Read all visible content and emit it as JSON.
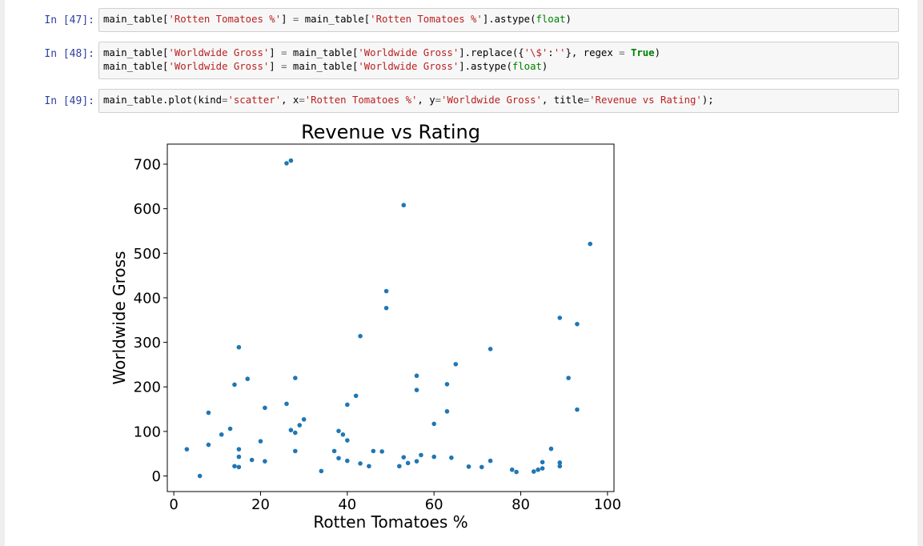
{
  "cells": [
    {
      "prompt": "In [47]:",
      "lines": [
        [
          [
            "t",
            "main_table["
          ],
          [
            "s",
            "'Rotten Tomatoes %'"
          ],
          [
            "t",
            "] "
          ],
          [
            "o",
            "="
          ],
          [
            "t",
            " main_table["
          ],
          [
            "s",
            "'Rotten Tomatoes %'"
          ],
          [
            "t",
            "].astype("
          ],
          [
            "b",
            "float"
          ],
          [
            "t",
            ")"
          ]
        ]
      ]
    },
    {
      "prompt": "In [48]:",
      "lines": [
        [
          [
            "t",
            "main_table["
          ],
          [
            "s",
            "'Worldwide Gross'"
          ],
          [
            "t",
            "] "
          ],
          [
            "o",
            "="
          ],
          [
            "t",
            " main_table["
          ],
          [
            "s",
            "'Worldwide Gross'"
          ],
          [
            "t",
            "].replace({"
          ],
          [
            "s",
            "'\\$'"
          ],
          [
            "t",
            ":"
          ],
          [
            "s",
            "''"
          ],
          [
            "t",
            "}, regex "
          ],
          [
            "o",
            "="
          ],
          [
            "t",
            " "
          ],
          [
            "k",
            "True"
          ],
          [
            "t",
            ")"
          ]
        ],
        [
          [
            "t",
            "main_table["
          ],
          [
            "s",
            "'Worldwide Gross'"
          ],
          [
            "t",
            "] "
          ],
          [
            "o",
            "="
          ],
          [
            "t",
            " main_table["
          ],
          [
            "s",
            "'Worldwide Gross'"
          ],
          [
            "t",
            "].astype("
          ],
          [
            "b",
            "float"
          ],
          [
            "t",
            ")"
          ]
        ]
      ]
    },
    {
      "prompt": "In [49]:",
      "lines": [
        [
          [
            "t",
            "main_table.plot(kind"
          ],
          [
            "o",
            "="
          ],
          [
            "s",
            "'scatter'"
          ],
          [
            "t",
            ", x"
          ],
          [
            "o",
            "="
          ],
          [
            "s",
            "'Rotten Tomatoes %'"
          ],
          [
            "t",
            ", y"
          ],
          [
            "o",
            "="
          ],
          [
            "s",
            "'Worldwide Gross'"
          ],
          [
            "t",
            ", title"
          ],
          [
            "o",
            "="
          ],
          [
            "s",
            "'Revenue vs Rating'"
          ],
          [
            "t",
            ");"
          ]
        ]
      ]
    }
  ],
  "chart_data": {
    "type": "scatter",
    "title": "Revenue vs Rating",
    "xlabel": "Rotten Tomatoes %",
    "ylabel": "Worldwide Gross",
    "xlim": [
      -1.5,
      101.5
    ],
    "ylim": [
      -35,
      745
    ],
    "xticks": [
      0,
      20,
      40,
      60,
      80,
      100
    ],
    "yticks": [
      0,
      100,
      200,
      300,
      400,
      500,
      600,
      700
    ],
    "grid": false,
    "color": "#1f77b4",
    "points": [
      [
        3,
        60
      ],
      [
        6,
        0
      ],
      [
        8,
        70
      ],
      [
        8,
        142
      ],
      [
        11,
        93
      ],
      [
        13,
        106
      ],
      [
        14,
        22
      ],
      [
        14,
        205
      ],
      [
        15,
        20
      ],
      [
        15,
        43
      ],
      [
        15,
        60
      ],
      [
        15,
        289
      ],
      [
        17,
        218
      ],
      [
        18,
        36
      ],
      [
        20,
        78
      ],
      [
        21,
        33
      ],
      [
        21,
        153
      ],
      [
        26,
        162
      ],
      [
        26,
        702
      ],
      [
        27,
        103
      ],
      [
        27,
        708
      ],
      [
        28,
        97
      ],
      [
        28,
        56
      ],
      [
        28,
        220
      ],
      [
        29,
        114
      ],
      [
        30,
        127
      ],
      [
        34,
        11
      ],
      [
        37,
        56
      ],
      [
        38,
        40
      ],
      [
        38,
        101
      ],
      [
        39,
        93
      ],
      [
        40,
        80
      ],
      [
        40,
        34
      ],
      [
        40,
        160
      ],
      [
        42,
        180
      ],
      [
        43,
        28
      ],
      [
        43,
        314
      ],
      [
        45,
        22
      ],
      [
        46,
        56
      ],
      [
        48,
        55
      ],
      [
        49,
        377
      ],
      [
        49,
        415
      ],
      [
        52,
        22
      ],
      [
        53,
        42
      ],
      [
        53,
        608
      ],
      [
        54,
        29
      ],
      [
        56,
        33
      ],
      [
        56,
        193
      ],
      [
        56,
        225
      ],
      [
        57,
        47
      ],
      [
        60,
        43
      ],
      [
        60,
        117
      ],
      [
        63,
        145
      ],
      [
        63,
        206
      ],
      [
        64,
        41
      ],
      [
        65,
        251
      ],
      [
        68,
        21
      ],
      [
        71,
        20
      ],
      [
        73,
        34
      ],
      [
        73,
        285
      ],
      [
        78,
        14
      ],
      [
        79,
        9
      ],
      [
        83,
        10
      ],
      [
        84,
        14
      ],
      [
        85,
        17
      ],
      [
        85,
        31
      ],
      [
        87,
        61
      ],
      [
        89,
        22
      ],
      [
        89,
        30
      ],
      [
        89,
        355
      ],
      [
        91,
        220
      ],
      [
        93,
        149
      ],
      [
        93,
        341
      ],
      [
        96,
        521
      ]
    ]
  }
}
